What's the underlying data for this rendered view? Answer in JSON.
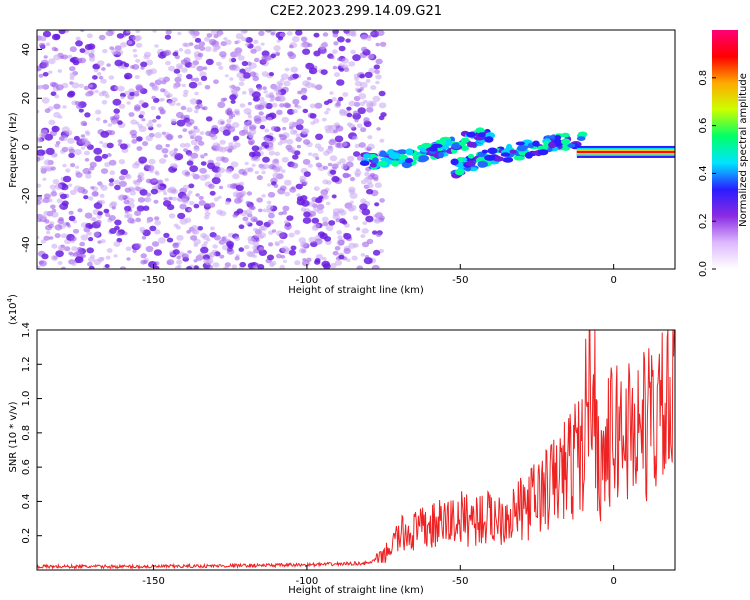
{
  "figure": {
    "title": "C2E2.2023.299.14.09.G21"
  },
  "colors": {
    "scatter_light": "#c9a6f2",
    "scatter_mid": "#a061ea",
    "scatter_dark": "#6b1fe0",
    "snr_line": "#ee2222",
    "colormap": [
      "#ffffff",
      "#ddb8ff",
      "#8a2be2",
      "#2a1dff",
      "#00e5ff",
      "#00ff66",
      "#ccff00",
      "#ffaa00",
      "#ff0000",
      "#ff0077"
    ]
  },
  "chart_data": [
    {
      "type": "heatmap",
      "title": "C2E2.2023.299.14.09.G21",
      "xlabel": "Height of straight line (km)",
      "ylabel": "Frequency (Hz)",
      "xlim": [
        -188,
        20
      ],
      "ylim": [
        -50,
        48
      ],
      "xticks": [
        -150,
        -100,
        -50,
        0
      ],
      "yticks": [
        -40,
        -20,
        0,
        20,
        40
      ],
      "grid": false,
      "noise_region_x": [
        -188,
        -75
      ],
      "signal_branches": [
        {
          "x": [
            -82,
            -65,
            -50,
            -40
          ],
          "y": [
            -6,
            -4,
            2,
            6
          ]
        },
        {
          "x": [
            -52,
            -40,
            -25,
            -10
          ],
          "y": [
            -9,
            -4,
            0,
            4
          ]
        },
        {
          "x": [
            -12,
            0,
            10,
            20
          ],
          "y": [
            -2,
            -2,
            -2,
            -2
          ]
        }
      ],
      "colorbar": {
        "label": "Normalized spectral amplitude",
        "ticks": [
          0.0,
          0.2,
          0.4,
          0.6,
          0.8
        ],
        "range": [
          0.0,
          1.0
        ]
      }
    },
    {
      "type": "line",
      "xlabel": "Height of straight line (km)",
      "ylabel": "SNR (10 * v/v)",
      "yscale_label": "(x10",
      "yscale_exp": "4",
      "xlim": [
        -188,
        20
      ],
      "ylim": [
        0.0,
        1.4
      ],
      "xticks": [
        -150,
        -100,
        -50,
        0
      ],
      "yticks": [
        0.2,
        0.4,
        0.6,
        0.8,
        1.0,
        1.2,
        1.4
      ],
      "grid": false,
      "series": [
        {
          "x": [
            -188,
            -150,
            -100,
            -80,
            -75,
            -70,
            -60,
            -50,
            -40,
            -30,
            -20,
            -15,
            -10,
            -7,
            -5,
            0,
            10,
            20
          ],
          "y": [
            0.02,
            0.02,
            0.03,
            0.04,
            0.08,
            0.2,
            0.25,
            0.3,
            0.3,
            0.35,
            0.5,
            0.6,
            0.7,
            1.4,
            0.6,
            0.8,
            0.85,
            0.95
          ]
        }
      ]
    }
  ]
}
